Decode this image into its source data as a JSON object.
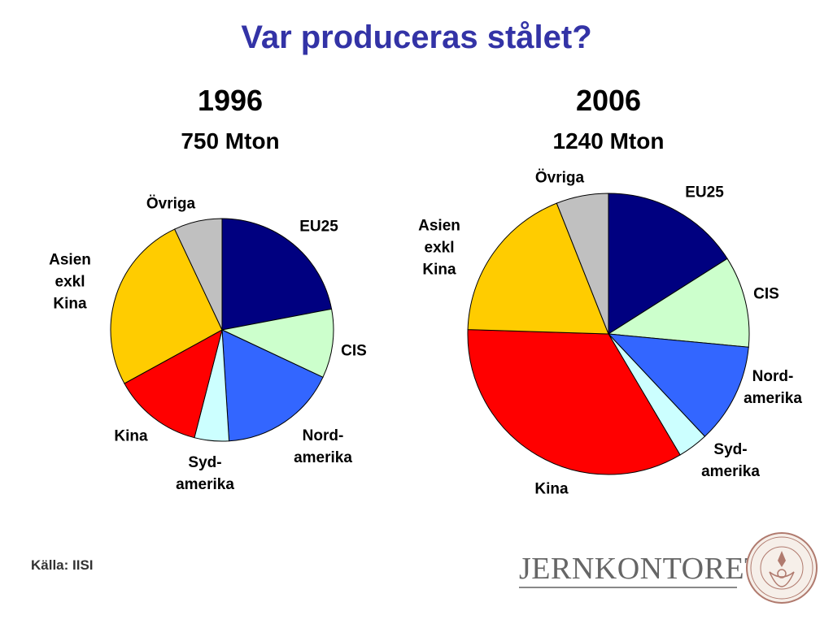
{
  "title": "Var produceras stålet?",
  "source": "Källa: IISI",
  "logo": {
    "text": "JERNKONTORET",
    "seal_text": "JERN CONTOIRETS SIGILL"
  },
  "colors": {
    "EU25": "#000080",
    "CIS": "#ccffcc",
    "Nord-amerika": "#3366ff",
    "Syd-amerika": "#ccffff",
    "Kina": "#ff0000",
    "Asien exkl Kina": "#ffcc00",
    "Övriga": "#c0c0c0",
    "title": "#3333a6"
  },
  "chart_data": [
    {
      "type": "pie",
      "year": "1996",
      "total": "750 Mton",
      "start": "12 o'clock, clockwise",
      "categories": [
        "EU25",
        "CIS",
        "Nord-amerika",
        "Syd-amerika",
        "Kina",
        "Asien exkl Kina",
        "Övriga"
      ],
      "labels": [
        "EU25",
        "CIS",
        "Nord-\namerika",
        "Syd-\namerika",
        "Kina",
        "Asien\nexkl Kina",
        "Övriga"
      ],
      "values": [
        22,
        10,
        17,
        5,
        13,
        26,
        7
      ]
    },
    {
      "type": "pie",
      "year": "2006",
      "total": "1240 Mton",
      "start": "12 o'clock, clockwise",
      "categories": [
        "EU25",
        "CIS",
        "Nord-amerika",
        "Syd-amerika",
        "Kina",
        "Asien exkl Kina",
        "Övriga"
      ],
      "labels": [
        "EU25",
        "CIS",
        "Nord-\namerika",
        "Syd-\namerika",
        "Kina",
        "Asien\nexkl Kina",
        "Övriga"
      ],
      "values": [
        16,
        10.5,
        11.5,
        3.5,
        34,
        18.5,
        6
      ]
    }
  ]
}
